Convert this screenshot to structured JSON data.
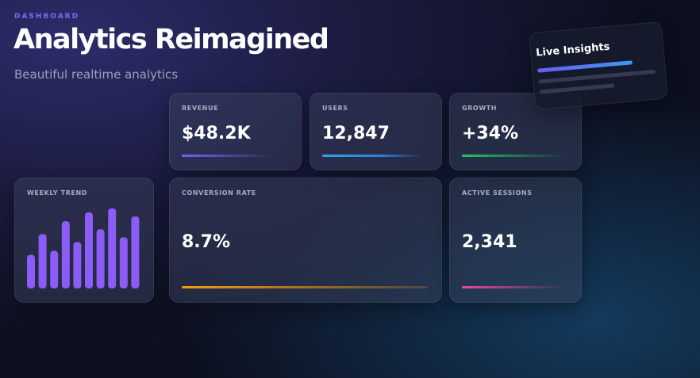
{
  "header": {
    "eyebrow": "DASHBOARD",
    "title": "Analytics Reimagined",
    "subtitle": "Beautiful realtime analytics"
  },
  "cards": [
    {
      "label": "REVENUE",
      "value": "$48.2K"
    },
    {
      "label": "USERS",
      "value": "12,847"
    },
    {
      "label": "GROWTH",
      "value": "+34%"
    },
    {
      "label": "CONVERSION RATE",
      "value": "8.7%"
    },
    {
      "label": "ACTIVE SESSIONS",
      "value": "2,341"
    }
  ],
  "weekly_trend": {
    "label": "WEEKLY TREND",
    "values": [
      42,
      68,
      47,
      84,
      58,
      95,
      74,
      100,
      64,
      90
    ],
    "ylim": [
      0,
      100
    ],
    "color": "#8b5cf6"
  },
  "live_insights": {
    "title": "Live Insights"
  }
}
